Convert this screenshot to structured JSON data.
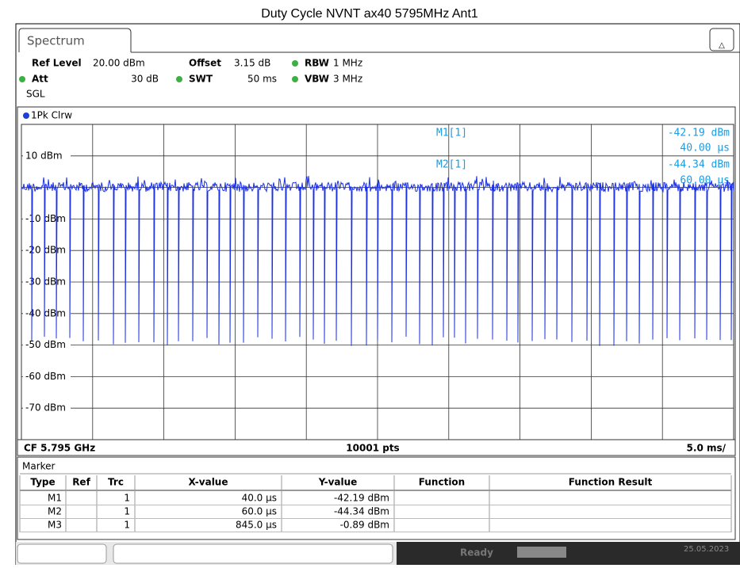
{
  "header": {
    "title": "Duty Cycle NVNT ax40 5795MHz Ant1"
  },
  "tab": "Spectrum",
  "settings": {
    "ref_level_label": "Ref Level",
    "ref_level": "20.00 dBm",
    "offset_label": "Offset",
    "offset": "3.15 dB",
    "rbw_label": "RBW",
    "rbw": "1 MHz",
    "att_label": "Att",
    "att": "30 dB",
    "swt_label": "SWT",
    "swt": "50 ms",
    "vbw_label": "VBW",
    "vbw": "3 MHz",
    "mode": "SGL"
  },
  "trace_label": "1Pk Clrw",
  "marker_readout": {
    "m1_name": "M1[1]",
    "m1_y": "-42.19 dBm",
    "m1_x": "40.00 µs",
    "m2_name": "M2[1]",
    "m2_y": "-44.34 dBm",
    "m2_x": "60.00 µs"
  },
  "y_axis_labels": [
    "10 dBm",
    "-10 dBm",
    "-20 dBm",
    "-30 dBm",
    "-40 dBm",
    "-50 dBm",
    "-60 dBm",
    "-70 dBm"
  ],
  "footer": {
    "center_freq": "CF 5.795 GHz",
    "points": "10001 pts",
    "sweep": "5.0 ms/"
  },
  "marker_table": {
    "title": "Marker",
    "columns": [
      "Type",
      "Ref",
      "Trc",
      "X-value",
      "Y-value",
      "Function",
      "Function Result"
    ],
    "rows": [
      [
        "M1",
        "",
        "1",
        "40.0 µs",
        "-42.19 dBm",
        "",
        ""
      ],
      [
        "M2",
        "",
        "1",
        "60.0 µs",
        "-44.34 dBm",
        "",
        ""
      ],
      [
        "M3",
        "",
        "1",
        "845.0 µs",
        "-0.89 dBm",
        "",
        ""
      ]
    ]
  },
  "status": {
    "state": "Ready",
    "date": "25.05.2023"
  }
}
